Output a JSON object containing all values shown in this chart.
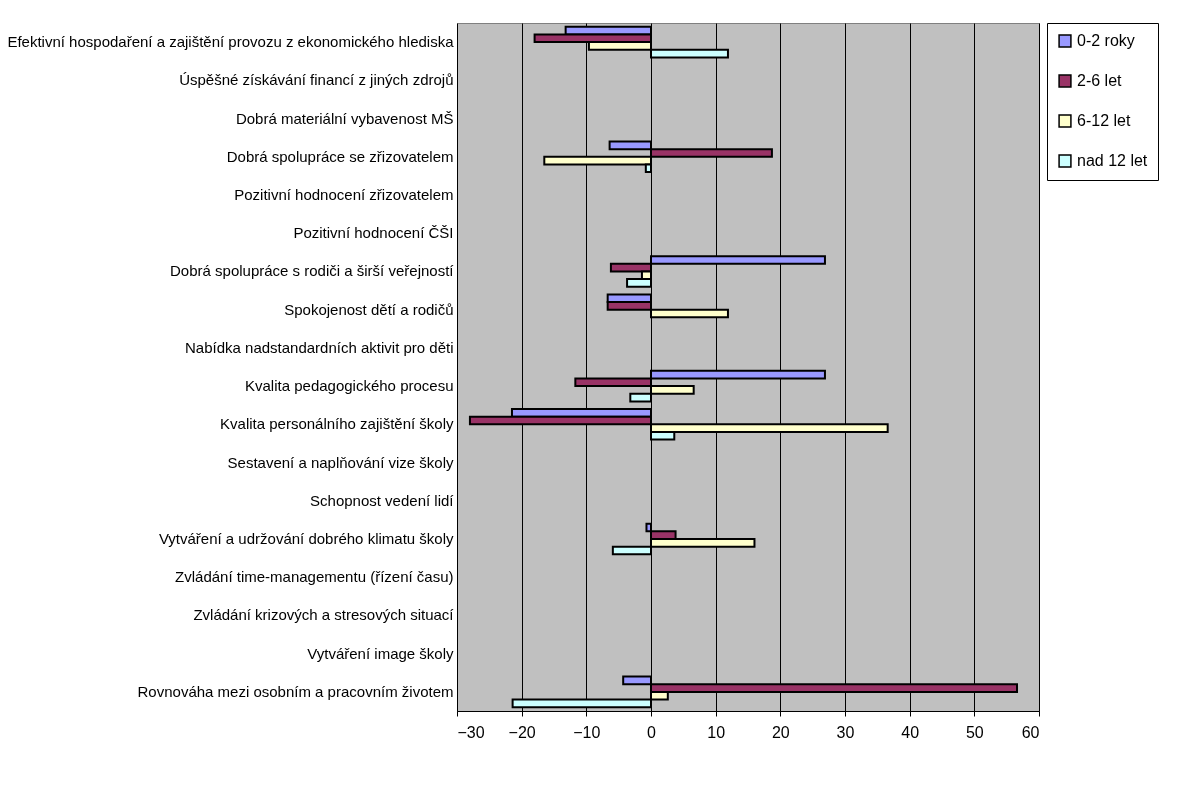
{
  "chart_data": {
    "type": "bar",
    "orientation": "horizontal",
    "categories": [
      "Efektivní hospodaření a zajištění provozu z ekonomického hlediska",
      "Úspěšné získávání financí z jiných zdrojů",
      "Dobrá materiální vybavenost MŠ",
      "Dobrá spolupráce se zřizovatelem",
      "Pozitivní hodnocení zřizovatelem",
      "Pozitivní hodnocení ČŠI",
      "Dobrá spolupráce s rodiči a širší veřejností",
      "Spokojenost dětí a rodičů",
      "Nabídka nadstandardních aktivit pro děti",
      "Kvalita pedagogického procesu",
      "Kvalita personálního zajištění školy",
      "Sestavení a naplňování vize školy",
      "Schopnost vedení lidí",
      "Vytváření a udržování dobrého klimatu školy",
      "Zvládání time-managementu (řízení času)",
      "Zvládání krizových a stresových situací",
      "Vytváření image školy",
      "Rovnováha mezi osobním a pracovním životem"
    ],
    "series": [
      {
        "name": "0-2 roky",
        "color": "#9999ff",
        "values": [
          -13.2,
          null,
          null,
          -6.4,
          null,
          null,
          26.9,
          -6.7,
          null,
          26.9,
          -21.5,
          null,
          null,
          -0.7,
          null,
          null,
          null,
          -4.3
        ]
      },
      {
        "name": "2-6 let",
        "color": "#993366",
        "values": [
          -18.0,
          null,
          null,
          18.7,
          null,
          null,
          -6.2,
          -6.7,
          null,
          -11.7,
          -28.0,
          null,
          null,
          3.8,
          null,
          null,
          null,
          56.6
        ]
      },
      {
        "name": "6-12 let",
        "color": "#ffffcc",
        "values": [
          -9.6,
          null,
          null,
          -16.5,
          null,
          null,
          -1.4,
          11.9,
          null,
          6.6,
          36.6,
          null,
          null,
          16.0,
          null,
          null,
          null,
          2.6
        ]
      },
      {
        "name": "nad 12 let",
        "color": "#ccffff",
        "values": [
          11.9,
          null,
          null,
          -0.8,
          null,
          null,
          -3.7,
          null,
          null,
          -3.2,
          3.6,
          null,
          null,
          -5.9,
          null,
          null,
          null,
          -21.4
        ]
      }
    ],
    "xlim": [
      -30,
      60
    ],
    "xticks": [
      -30,
      -20,
      -10,
      0,
      10,
      20,
      30,
      40,
      50,
      60
    ],
    "grid": "x",
    "legend": "right"
  }
}
